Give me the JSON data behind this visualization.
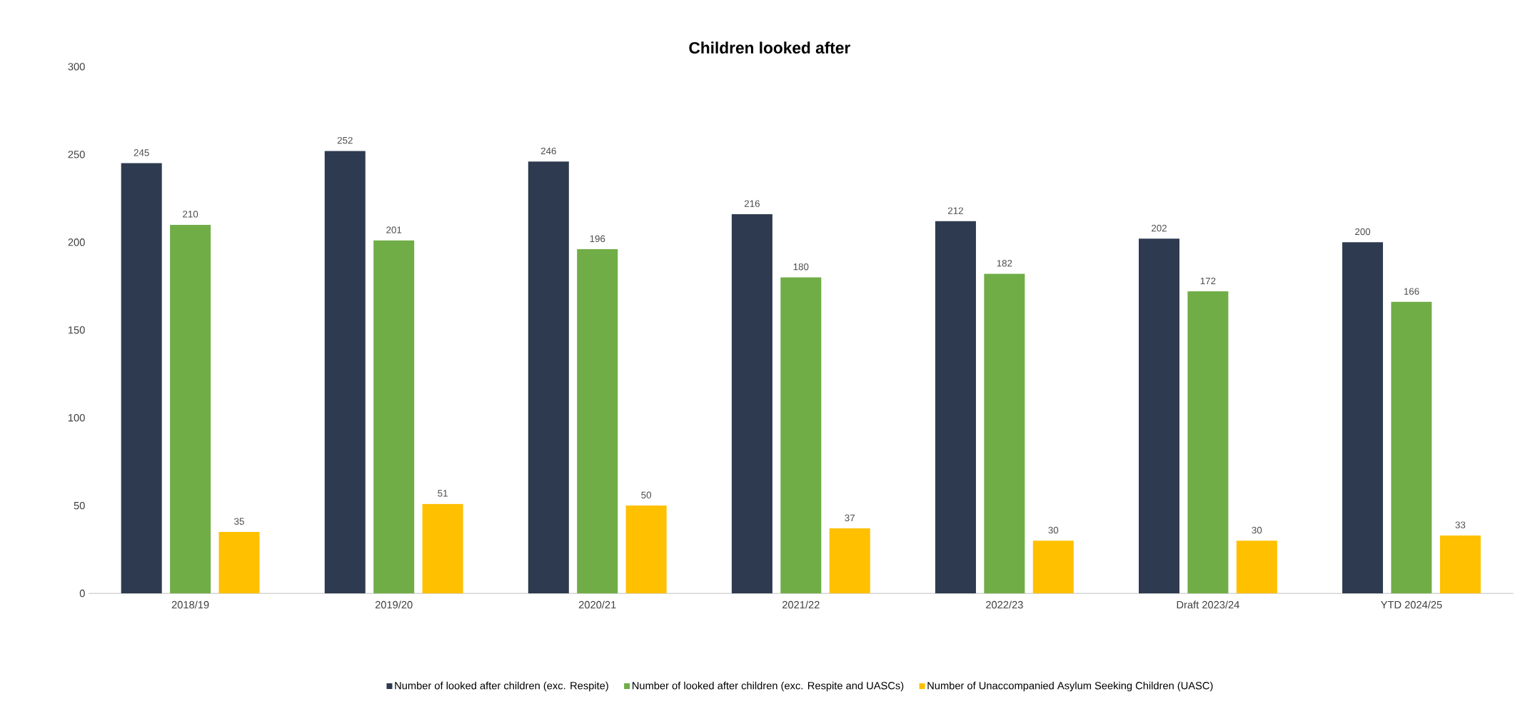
{
  "chart_data": {
    "type": "bar",
    "title": "Children looked after",
    "categories": [
      "2018/19",
      "2019/20",
      "2020/21",
      "2021/22",
      "2022/23",
      "Draft 2023/24",
      "YTD 2024/25"
    ],
    "series": [
      {
        "name": "Number of looked after children (exc. Respite)",
        "color": "#2e3a4f",
        "values": [
          245,
          252,
          246,
          216,
          212,
          202,
          200
        ]
      },
      {
        "name": "Number of looked after children (exc. Respite and UASCs)",
        "color": "#70ad47",
        "values": [
          210,
          201,
          196,
          180,
          182,
          172,
          166
        ]
      },
      {
        "name": "Number of Unaccompanied Asylum Seeking Children (UASC)",
        "color": "#ffc000",
        "values": [
          35,
          51,
          50,
          37,
          30,
          30,
          33
        ]
      }
    ],
    "ylim": [
      0,
      300
    ],
    "yticks": [
      0,
      50,
      100,
      150,
      200,
      250,
      300
    ],
    "data_labels": true,
    "legend": "bottom",
    "grid": false
  }
}
